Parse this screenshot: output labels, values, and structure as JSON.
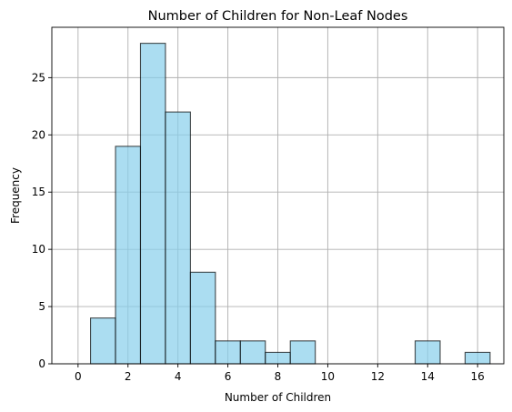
{
  "chart_data": {
    "type": "bar",
    "title": "Number of Children for Non-Leaf Nodes",
    "xlabel": "Number of Children",
    "ylabel": "Frequency",
    "xlim": [
      -1.05,
      17.05
    ],
    "ylim": [
      0,
      29.4
    ],
    "x_ticks": [
      0,
      2,
      4,
      6,
      8,
      10,
      12,
      14,
      16
    ],
    "y_ticks": [
      0,
      5,
      10,
      15,
      20,
      25
    ],
    "bin_width": 1,
    "bins": [
      {
        "center": 1,
        "value": 4
      },
      {
        "center": 2,
        "value": 19
      },
      {
        "center": 3,
        "value": 28
      },
      {
        "center": 4,
        "value": 22
      },
      {
        "center": 5,
        "value": 8
      },
      {
        "center": 6,
        "value": 2
      },
      {
        "center": 7,
        "value": 2
      },
      {
        "center": 8,
        "value": 1
      },
      {
        "center": 9,
        "value": 2
      },
      {
        "center": 14,
        "value": 2
      },
      {
        "center": 16,
        "value": 1
      }
    ],
    "grid": true,
    "bar_color": "#87ceeb",
    "edge_color": "#000000"
  }
}
